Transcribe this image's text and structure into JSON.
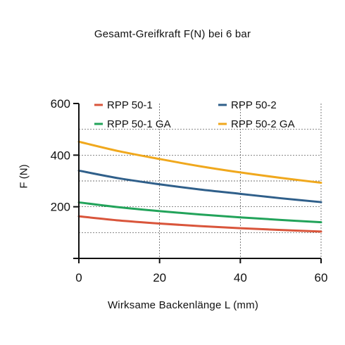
{
  "chart_data": {
    "type": "line",
    "title": "Gesamt-Greifkraft F(N) bei 6 bar",
    "xlabel": "Wirksame Backenlänge L (mm)",
    "ylabel": "F (N)",
    "xlim": [
      0,
      60
    ],
    "ylim": [
      0,
      600
    ],
    "x_ticks": [
      "0",
      "20",
      "40",
      "60"
    ],
    "y_ticks": [
      "200",
      "400",
      "600"
    ],
    "grid": true,
    "legend_position": "top",
    "x": [
      0,
      10,
      20,
      30,
      40,
      50,
      60
    ],
    "series": [
      {
        "name": "RPP 50-1",
        "color": "#d9553b",
        "values": [
          163,
          147,
          135,
          125,
          117,
          110,
          104
        ]
      },
      {
        "name": "RPP 50-2",
        "color": "#2f5f8a",
        "values": [
          340,
          310,
          287,
          267,
          250,
          233,
          218
        ]
      },
      {
        "name": "RPP 50-1 GA",
        "color": "#22a35a",
        "values": [
          217,
          198,
          183,
          170,
          159,
          149,
          140
        ]
      },
      {
        "name": "RPP 50-2 GA",
        "color": "#f0a81d",
        "values": [
          452,
          415,
          385,
          357,
          333,
          312,
          293
        ]
      }
    ]
  }
}
